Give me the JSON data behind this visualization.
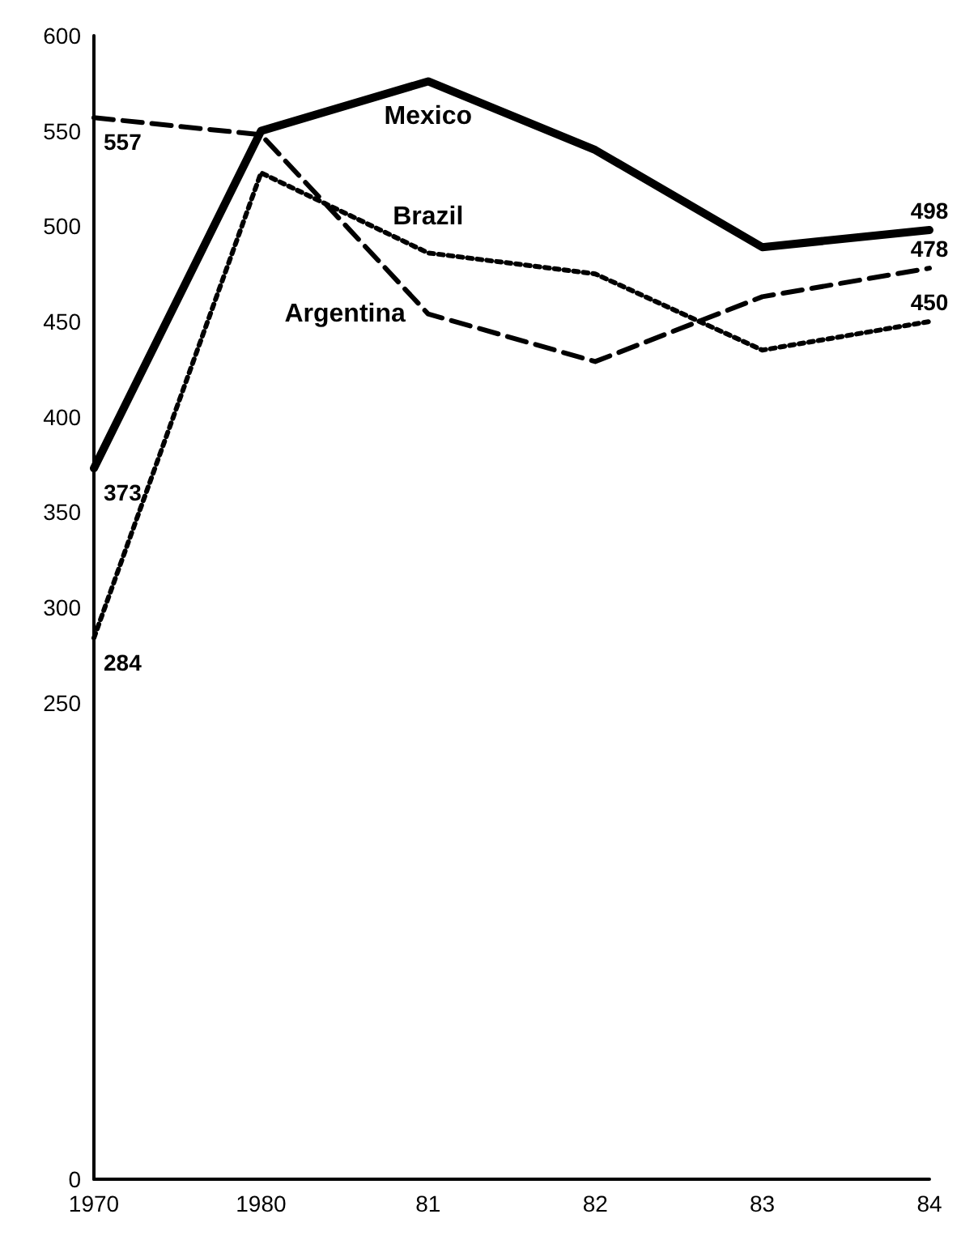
{
  "chart_data": {
    "type": "line",
    "categories": [
      "1970",
      "1980",
      "81",
      "82",
      "83",
      "84"
    ],
    "series": [
      {
        "name": "Mexico",
        "color": "#000000",
        "line_style": "solid",
        "values": [
          373,
          550,
          576,
          540,
          489,
          498
        ],
        "value_labels": [
          "373",
          null,
          null,
          null,
          null,
          "498"
        ]
      },
      {
        "name": "Brazil",
        "color": "#000000",
        "line_style": "dotted",
        "values": [
          284,
          528,
          486,
          475,
          435,
          450
        ],
        "value_labels": [
          "284",
          null,
          null,
          null,
          null,
          "450"
        ]
      },
      {
        "name": "Argentina",
        "color": "#000000",
        "line_style": "dashed",
        "values": [
          557,
          548,
          454,
          429,
          463,
          478
        ],
        "value_labels": [
          "557",
          null,
          null,
          null,
          null,
          "478"
        ]
      }
    ],
    "ylim": [
      0,
      600
    ],
    "yticks": [
      0,
      250,
      300,
      350,
      400,
      450,
      500,
      550,
      600
    ],
    "grid": false,
    "legend": false,
    "marker": "none"
  }
}
